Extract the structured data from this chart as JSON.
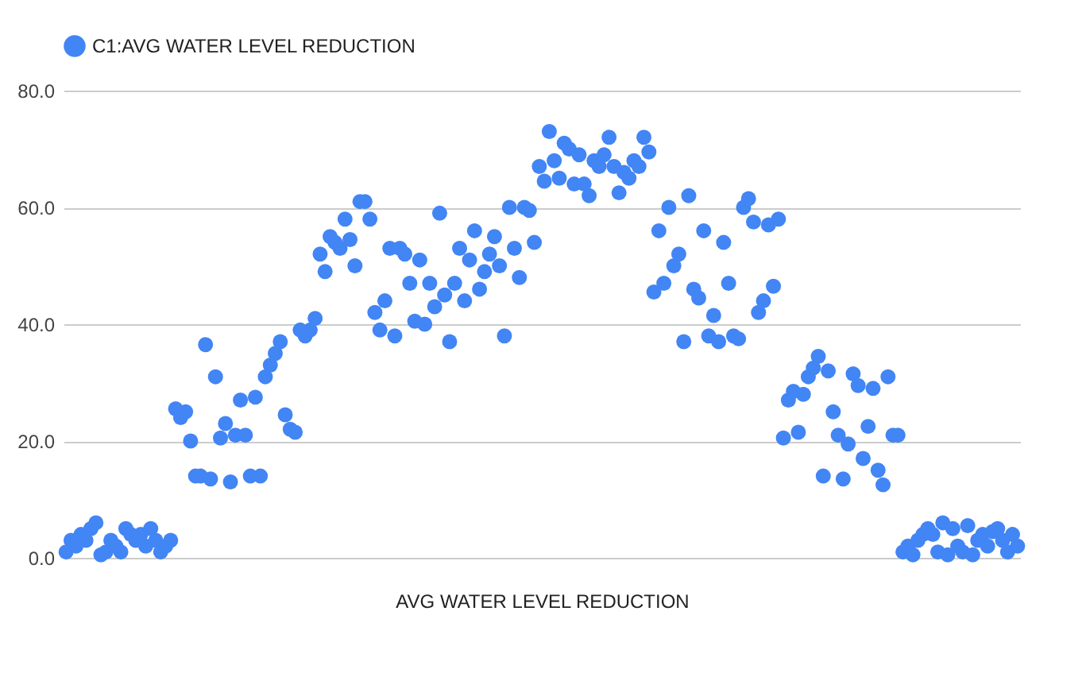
{
  "chart_data": {
    "type": "scatter",
    "xlabel": "AVG WATER LEVEL REDUCTION",
    "categories": [
      null,
      null,
      null,
      null,
      null,
      null,
      null,
      null,
      null,
      null,
      null,
      null,
      null,
      null,
      null,
      null,
      null,
      null,
      null,
      null,
      null,
      null,
      null,
      null,
      null,
      null,
      null,
      null,
      null,
      null,
      null,
      null,
      null,
      null,
      null,
      null,
      null,
      null,
      null,
      null,
      null,
      null,
      null,
      null,
      null,
      null,
      null,
      null,
      null,
      null,
      null,
      null,
      null,
      null,
      null,
      null,
      null,
      null,
      null,
      null,
      null,
      null,
      null,
      null,
      null,
      null,
      null,
      null,
      null,
      null,
      null,
      null,
      null,
      null,
      null,
      null,
      null,
      null,
      null,
      null,
      null,
      null,
      null,
      null,
      null,
      null,
      null,
      null,
      null,
      null,
      null,
      null,
      null,
      null,
      null,
      null,
      null,
      null,
      null,
      null,
      null,
      null,
      null,
      null,
      null,
      null,
      null,
      null,
      null,
      null,
      null,
      null,
      null,
      null,
      null,
      null,
      null,
      null,
      null,
      null,
      null,
      null,
      null,
      null,
      null,
      null,
      null,
      null,
      null,
      null,
      null,
      null,
      null,
      null,
      null,
      null,
      null,
      null,
      null,
      null,
      null,
      null,
      null,
      null,
      null,
      null,
      null,
      null,
      null,
      null,
      null,
      null,
      null,
      null,
      null,
      null,
      null,
      null,
      null,
      null,
      null,
      null,
      null,
      null,
      null,
      null,
      null,
      null,
      null,
      null,
      null,
      null,
      null,
      null,
      null,
      null,
      null,
      null,
      null,
      null,
      null,
      null,
      null,
      null,
      null,
      null,
      null,
      null,
      null,
      null,
      null,
      null
    ],
    "series": [
      {
        "name": "C1:AVG WATER LEVEL REDUCTION",
        "color": "#4285f4",
        "values": [
          1,
          3,
          2,
          4,
          3,
          5,
          6,
          0.5,
          1,
          3,
          2,
          1,
          5,
          4,
          3,
          4,
          2,
          5,
          3,
          1,
          2,
          3,
          25.5,
          24,
          25,
          20,
          14,
          14,
          36.5,
          13.5,
          31,
          20.5,
          23,
          13,
          21,
          27,
          21,
          14,
          27.5,
          14,
          31,
          33,
          35,
          37,
          24.5,
          22,
          21.5,
          39,
          38,
          39,
          41,
          52,
          49,
          55,
          54,
          53,
          58,
          54.5,
          50,
          61,
          61,
          58,
          42,
          39,
          44,
          53,
          38,
          53,
          52,
          47,
          40.5,
          51,
          40,
          47,
          43,
          59,
          45,
          37,
          47,
          53,
          44,
          51,
          56,
          46,
          49,
          52,
          55,
          50,
          38,
          60,
          53,
          48,
          60,
          59.5,
          54,
          67,
          64.5,
          73,
          68,
          65,
          71,
          70,
          64,
          69,
          64,
          62,
          68,
          67,
          69,
          72,
          67,
          62.5,
          66,
          65,
          68,
          67,
          72,
          69.5,
          45.5,
          56,
          47,
          60,
          50,
          52,
          37,
          62,
          46,
          44.5,
          56,
          38,
          41.5,
          37,
          54,
          47,
          38,
          37.5,
          60,
          61.5,
          57.5,
          42,
          44,
          57,
          46.5,
          58,
          20.5,
          27,
          28.5,
          21.5,
          28,
          31,
          32.5,
          34.5,
          14,
          32,
          25,
          21,
          13.5,
          19.5,
          31.5,
          29.5,
          17,
          22.5,
          29,
          15,
          12.5,
          31,
          21,
          21,
          1,
          2,
          0.5,
          3,
          4,
          5,
          4,
          1,
          6,
          0.5,
          5,
          2,
          1,
          5.5,
          0.5,
          3,
          4,
          2,
          4.5,
          5,
          3,
          1,
          4,
          2
        ]
      }
    ],
    "ylim": [
      0,
      80
    ],
    "yticks": [
      {
        "value": 0,
        "label": "0.0"
      },
      {
        "value": 20,
        "label": "20.0"
      },
      {
        "value": 40,
        "label": "40.0"
      },
      {
        "value": 60,
        "label": "60.0"
      },
      {
        "value": 80,
        "label": "80.0"
      }
    ],
    "grid": "y",
    "legend": "top",
    "marker": "circle"
  }
}
